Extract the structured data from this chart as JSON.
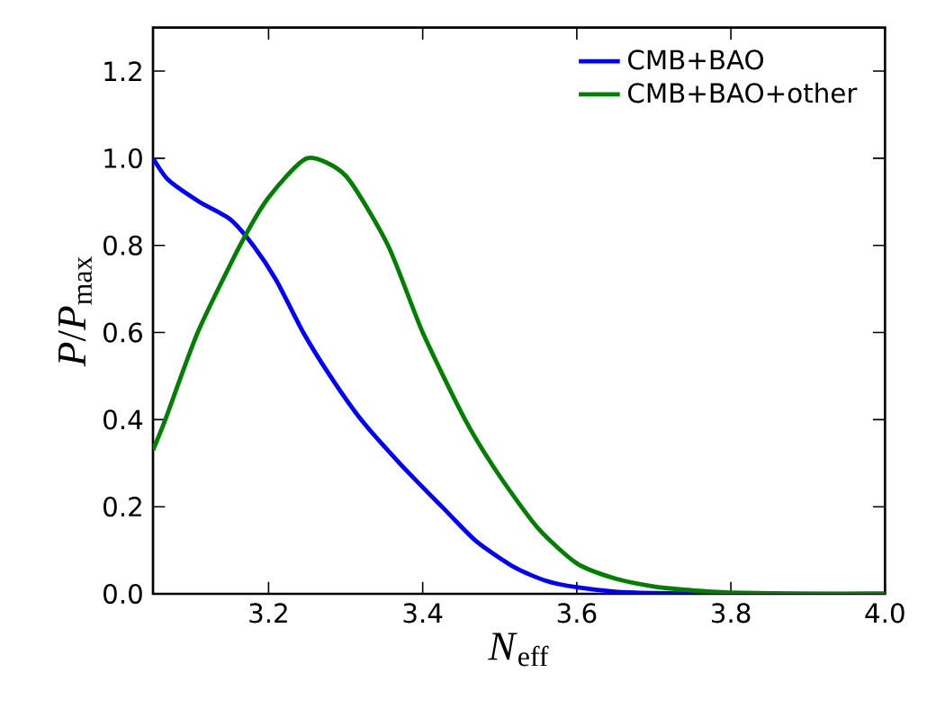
{
  "chart_data": {
    "type": "line",
    "xlabel": "*N*$_{eff}$",
    "ylabel": "*P*/*P*$_{max}$",
    "xlim": [
      3.05,
      4.0
    ],
    "ylim": [
      0.0,
      1.3
    ],
    "xticks": [
      3.2,
      3.4,
      3.6,
      3.8,
      {
        "value": 4.0,
        "label": "4.0"
      }
    ],
    "yticks": [
      {
        "value": 0.0,
        "label": "0.0"
      },
      0.2,
      0.4,
      0.6,
      0.8,
      {
        "value": 1.0,
        "label": "1.0"
      },
      1.2
    ],
    "legend": "top right",
    "grid": false,
    "marker": "none",
    "line_style": "solid",
    "series": [
      {
        "name": "CMB+BAO",
        "color": "#0000ff",
        "x": [
          3.05,
          3.07,
          3.11,
          3.15,
          3.18,
          3.21,
          3.245,
          3.28,
          3.32,
          3.37,
          3.425,
          3.47,
          3.52,
          3.56,
          3.6,
          3.65,
          3.7,
          3.8,
          4.0
        ],
        "values": [
          1.0,
          0.95,
          0.9,
          0.86,
          0.8,
          0.72,
          0.6,
          0.5,
          0.4,
          0.3,
          0.2,
          0.12,
          0.06,
          0.03,
          0.015,
          0.005,
          0.002,
          0.0,
          0.0
        ]
      },
      {
        "name": "CMB+BAO+other",
        "color": "#008000",
        "x": [
          3.05,
          3.066,
          3.108,
          3.163,
          3.2,
          3.25,
          3.3,
          3.355,
          3.4,
          3.455,
          3.5,
          3.55,
          3.6,
          3.65,
          3.7,
          3.75,
          3.8,
          3.9,
          4.0
        ],
        "values": [
          0.33,
          0.4,
          0.6,
          0.8,
          0.91,
          1.0,
          0.96,
          0.8,
          0.6,
          0.4,
          0.27,
          0.15,
          0.07,
          0.035,
          0.017,
          0.008,
          0.003,
          0.0,
          0.0
        ]
      }
    ]
  }
}
